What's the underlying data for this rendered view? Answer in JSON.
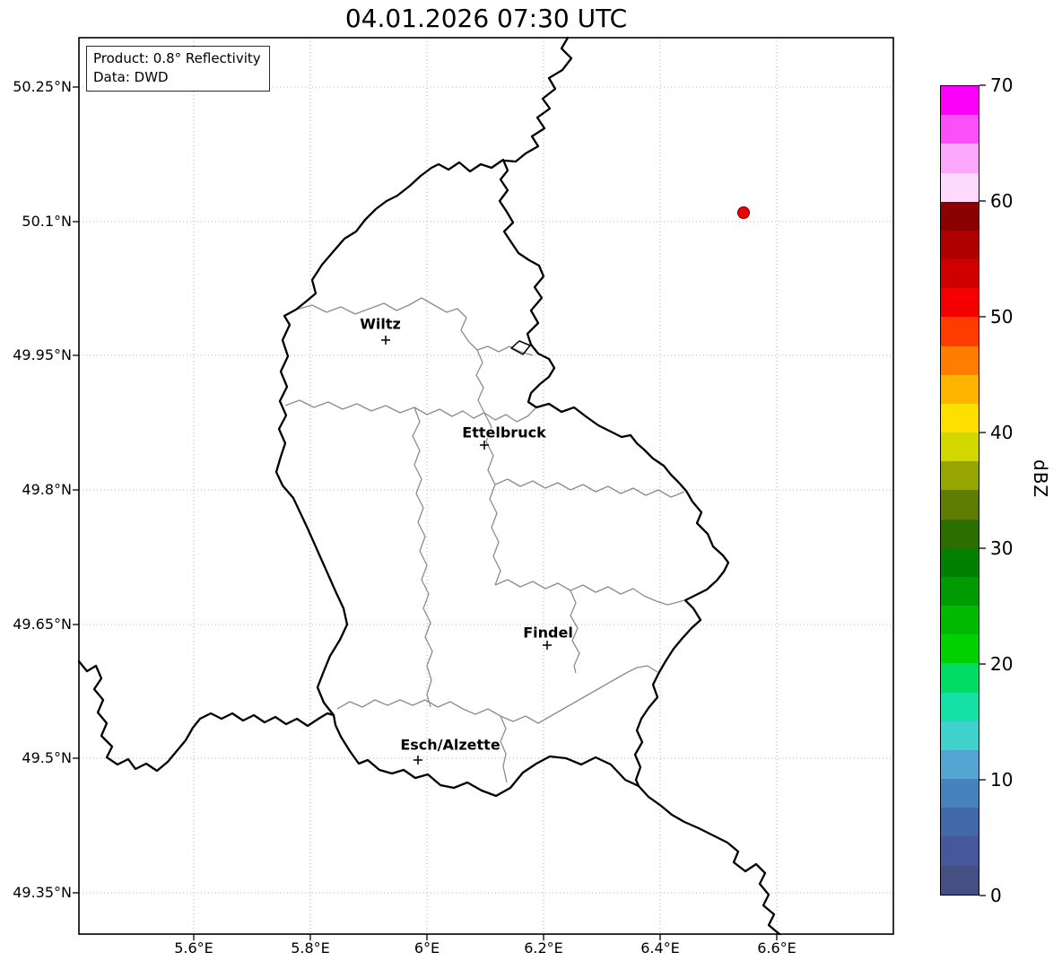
{
  "title": "04.01.2026 07:30 UTC",
  "info_box": {
    "line1": "Product: 0.8° Reflectivity",
    "line2": "Data: DWD"
  },
  "axes": {
    "x_ticks": [
      "5.6°E",
      "5.8°E",
      "6°E",
      "6.2°E",
      "6.4°E",
      "6.6°E"
    ],
    "y_ticks": [
      "50.25°N",
      "50.1°N",
      "49.95°N",
      "49.8°N",
      "49.65°N",
      "49.5°N",
      "49.35°N"
    ]
  },
  "map": {
    "cities": [
      {
        "name": "Wiltz",
        "approx_lon_e": 5.93,
        "approx_lat_n": 49.97
      },
      {
        "name": "Ettelbruck",
        "approx_lon_e": 6.1,
        "approx_lat_n": 49.85
      },
      {
        "name": "Findel",
        "approx_lon_e": 6.21,
        "approx_lat_n": 49.63
      },
      {
        "name": "Esch/Alzette",
        "approx_lon_e": 5.98,
        "approx_lat_n": 49.5
      }
    ],
    "radar_dot": {
      "color": "#ec0000",
      "approx_lon_e": 6.54,
      "approx_lat_n": 50.11
    },
    "border_colors": {
      "country": "#000000",
      "district": "#8c8c8c"
    }
  },
  "colorbar": {
    "label": "dBZ",
    "ticks": [
      "70",
      "60",
      "50",
      "40",
      "30",
      "20",
      "10",
      "0"
    ],
    "value_range": [
      0,
      70
    ],
    "colors_top_to_bottom": [
      "#fa00fa",
      "#fa50fa",
      "#fba7fb",
      "#fedafe",
      "#8b0000",
      "#ae0000",
      "#d10000",
      "#f40000",
      "#ff3c00",
      "#ff7d00",
      "#ffb400",
      "#ffdf00",
      "#d2d700",
      "#96a500",
      "#5f7d00",
      "#2d6e00",
      "#008000",
      "#009b00",
      "#00b900",
      "#00d200",
      "#00dc64",
      "#14e1a5",
      "#41d2cd",
      "#55a5d2",
      "#4682be",
      "#4169aa",
      "#46579b",
      "#464f82"
    ]
  }
}
